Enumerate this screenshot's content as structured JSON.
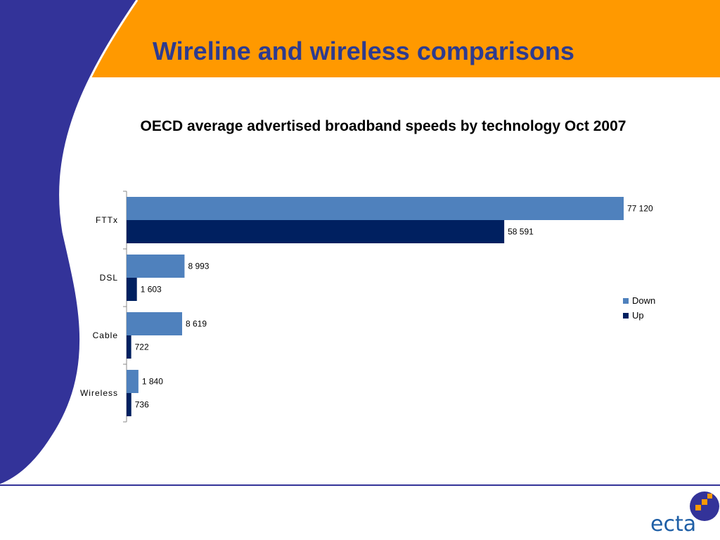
{
  "slide": {
    "title": "Wireline and wireless comparisons",
    "colors": {
      "header": "#ff9900",
      "swoosh": "#333399",
      "title": "#2e3b8f",
      "rule": "#333399"
    }
  },
  "chart_data": {
    "type": "bar",
    "orientation": "horizontal",
    "title": "OECD average advertised broadband speeds by technology Oct 2007",
    "categories": [
      "FTTx",
      "DSL",
      "Cable",
      "Wireless"
    ],
    "series": [
      {
        "name": "Down",
        "color": "#4f81bd",
        "values": [
          77120,
          8993,
          8619,
          1840
        ],
        "labels": [
          "77 120",
          "8 993",
          "8 619",
          "1 840"
        ]
      },
      {
        "name": "Up",
        "color": "#002060",
        "values": [
          58591,
          1603,
          722,
          736
        ],
        "labels": [
          "58 591",
          "1 603",
          "722",
          "736"
        ]
      }
    ],
    "xlabel": "",
    "ylabel": "",
    "xlim": [
      0,
      77120
    ],
    "grid": false,
    "legend_position": "right"
  },
  "logo": {
    "text": "ecta",
    "icon": "ecta-logo-icon"
  }
}
